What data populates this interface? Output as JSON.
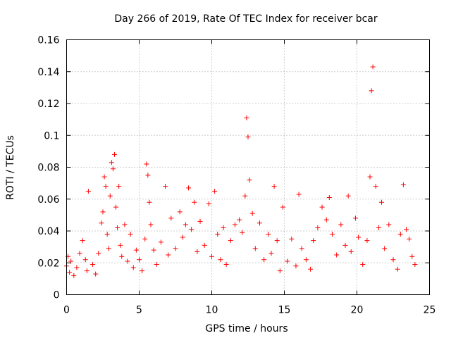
{
  "chart_data": {
    "type": "scatter",
    "title": "Day 266 of 2019, Rate Of TEC Index for receiver bcar",
    "xlabel": "GPS time / hours",
    "ylabel": "ROTI / TECUs",
    "xlim": [
      0,
      25
    ],
    "ylim": [
      0,
      0.16
    ],
    "xticks": [
      0,
      5,
      10,
      15,
      20,
      25
    ],
    "xtick_labels": [
      "0",
      "5",
      "10",
      "15",
      "20",
      "25"
    ],
    "yticks": [
      0,
      0.02,
      0.04,
      0.06,
      0.08,
      0.1,
      0.12,
      0.14,
      0.16
    ],
    "ytick_labels": [
      "0",
      "0.02",
      "0.04",
      "0.06",
      "0.08",
      "0.1",
      "0.12",
      "0.14",
      "0.16"
    ],
    "grid": true,
    "marker": "+",
    "color": "#ff0000",
    "series": [
      {
        "name": "ROTI",
        "x": [
          0.0,
          0.1,
          0.2,
          0.3,
          0.5,
          0.7,
          0.9,
          1.1,
          1.3,
          1.4,
          1.5,
          1.8,
          2.0,
          2.2,
          2.4,
          2.5,
          2.6,
          2.7,
          2.8,
          2.9,
          3.0,
          3.1,
          3.2,
          3.3,
          3.4,
          3.5,
          3.6,
          3.7,
          3.8,
          4.0,
          4.2,
          4.4,
          4.6,
          4.8,
          5.0,
          5.2,
          5.4,
          5.5,
          5.6,
          5.7,
          5.8,
          6.0,
          6.2,
          6.5,
          6.8,
          7.0,
          7.2,
          7.5,
          7.8,
          8.0,
          8.2,
          8.4,
          8.6,
          8.8,
          9.0,
          9.2,
          9.5,
          9.8,
          10.0,
          10.2,
          10.4,
          10.6,
          10.8,
          11.0,
          11.3,
          11.6,
          11.9,
          12.1,
          12.3,
          12.4,
          12.5,
          12.6,
          12.8,
          13.0,
          13.3,
          13.6,
          13.9,
          14.1,
          14.3,
          14.5,
          14.7,
          14.9,
          15.2,
          15.5,
          15.8,
          16.0,
          16.2,
          16.5,
          16.8,
          17.0,
          17.3,
          17.6,
          17.9,
          18.1,
          18.3,
          18.6,
          18.9,
          19.2,
          19.4,
          19.6,
          19.9,
          20.1,
          20.4,
          20.7,
          20.9,
          21.0,
          21.1,
          21.3,
          21.5,
          21.7,
          21.9,
          22.2,
          22.5,
          22.8,
          23.0,
          23.2,
          23.4,
          23.6,
          23.8,
          24.0
        ],
        "y": [
          0.018,
          0.024,
          0.014,
          0.021,
          0.012,
          0.017,
          0.026,
          0.034,
          0.022,
          0.015,
          0.065,
          0.019,
          0.013,
          0.026,
          0.045,
          0.052,
          0.074,
          0.068,
          0.038,
          0.029,
          0.062,
          0.083,
          0.079,
          0.088,
          0.055,
          0.042,
          0.068,
          0.031,
          0.024,
          0.044,
          0.021,
          0.038,
          0.017,
          0.028,
          0.022,
          0.015,
          0.035,
          0.082,
          0.075,
          0.058,
          0.044,
          0.028,
          0.019,
          0.033,
          0.068,
          0.025,
          0.048,
          0.029,
          0.052,
          0.036,
          0.044,
          0.067,
          0.041,
          0.058,
          0.027,
          0.046,
          0.031,
          0.057,
          0.024,
          0.065,
          0.038,
          0.022,
          0.042,
          0.019,
          0.034,
          0.044,
          0.047,
          0.039,
          0.062,
          0.111,
          0.099,
          0.072,
          0.051,
          0.029,
          0.045,
          0.022,
          0.038,
          0.026,
          0.068,
          0.034,
          0.015,
          0.055,
          0.021,
          0.035,
          0.018,
          0.063,
          0.029,
          0.022,
          0.016,
          0.034,
          0.042,
          0.055,
          0.047,
          0.061,
          0.038,
          0.025,
          0.044,
          0.031,
          0.062,
          0.027,
          0.048,
          0.036,
          0.019,
          0.034,
          0.074,
          0.128,
          0.143,
          0.068,
          0.042,
          0.058,
          0.029,
          0.044,
          0.022,
          0.016,
          0.038,
          0.069,
          0.041,
          0.035,
          0.024,
          0.019
        ]
      }
    ]
  }
}
